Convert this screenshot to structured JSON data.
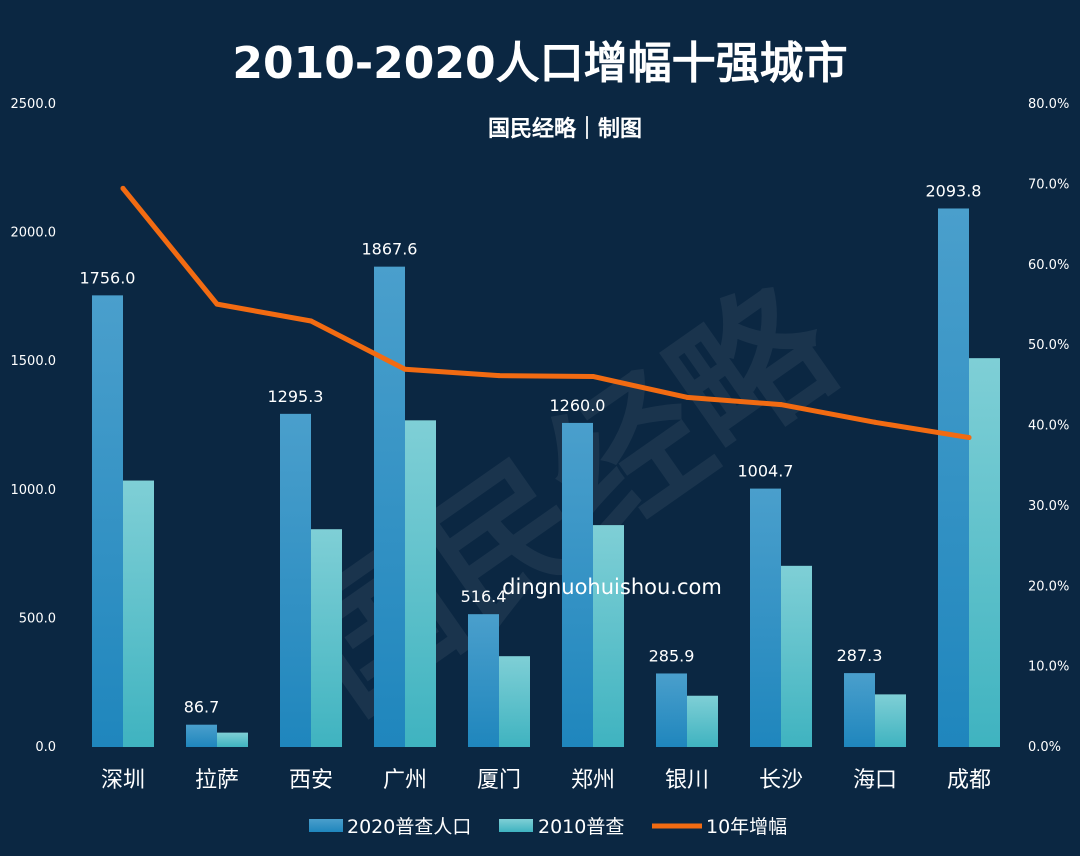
{
  "chart_data": {
    "type": "bar",
    "title": "2010-2020人口增幅十强城市",
    "subtitle": "国民经略｜制图",
    "categories": [
      "深圳",
      "拉萨",
      "西安",
      "广州",
      "厦门",
      "郑州",
      "银川",
      "长沙",
      "海口",
      "成都"
    ],
    "series": [
      {
        "name": "2020普查人口",
        "type": "bar",
        "axis": "left",
        "color": "#2b8fc6",
        "values": [
          1756.0,
          86.7,
          1295.3,
          1867.6,
          516.4,
          1260.0,
          285.9,
          1004.7,
          287.3,
          2093.8
        ],
        "labels": [
          "1756.0",
          "86.7",
          "1295.3",
          "1867.6",
          "516.4",
          "1260.0",
          "285.9",
          "1004.7",
          "287.3",
          "2093.8"
        ]
      },
      {
        "name": "2010普查",
        "type": "bar",
        "axis": "left",
        "color": "#5ec4cc",
        "values": [
          1036.0,
          55.9,
          846.8,
          1270.1,
          353.1,
          862.7,
          199.3,
          704.4,
          204.6,
          1511.8
        ]
      },
      {
        "name": "10年增幅",
        "type": "line",
        "axis": "right",
        "color": "#f26b12",
        "values": [
          0.695,
          0.551,
          0.53,
          0.47,
          0.462,
          0.461,
          0.435,
          0.426,
          0.404,
          0.385
        ]
      }
    ],
    "y_left": {
      "ylim": [
        0,
        2500
      ],
      "ticks": [
        "0.0",
        "500.0",
        "1000.0",
        "1500.0",
        "2000.0",
        "2500.0"
      ]
    },
    "y_right": {
      "ylim": [
        0,
        0.8
      ],
      "ticks": [
        "0.0%",
        "10.0%",
        "20.0%",
        "30.0%",
        "40.0%",
        "50.0%",
        "60.0%",
        "70.0%",
        "80.0%"
      ]
    },
    "grid": false,
    "legend": "bottom",
    "watermark": "dingnuohuishou.com",
    "background_mark": "国民经略"
  }
}
